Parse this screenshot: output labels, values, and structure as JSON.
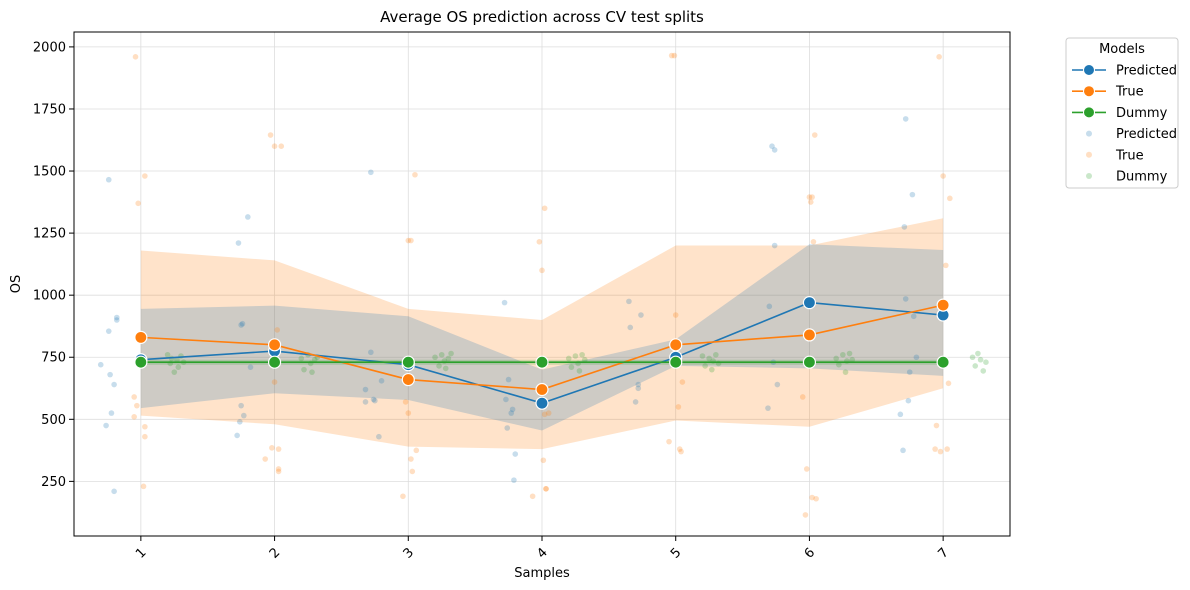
{
  "chart_data": {
    "type": "line",
    "title": "Average OS prediction across CV test splits",
    "xlabel": "Samples",
    "ylabel": "OS",
    "x": [
      "1",
      "2",
      "3",
      "4",
      "5",
      "6",
      "7"
    ],
    "ylim": [
      30,
      2060
    ],
    "yticks": [
      250,
      500,
      750,
      1000,
      1250,
      1500,
      1750,
      2000
    ],
    "grid": true,
    "legend": {
      "title": "Models",
      "placement": "outside-top-right",
      "entries": [
        {
          "label": "Predicted",
          "kind": "line"
        },
        {
          "label": "True",
          "kind": "line"
        },
        {
          "label": "Dummy",
          "kind": "line"
        },
        {
          "label": "Predicted",
          "kind": "points"
        },
        {
          "label": "True",
          "kind": "points"
        },
        {
          "label": "Dummy",
          "kind": "points"
        }
      ]
    },
    "series": [
      {
        "name": "Predicted",
        "color": "#1f77b4",
        "values": [
          740,
          775,
          720,
          565,
          750,
          970,
          920
        ],
        "band_lower": [
          545,
          605,
          578,
          455,
          715,
          705,
          675
        ],
        "band_upper": [
          945,
          958,
          915,
          700,
          822,
          1205,
          1182
        ],
        "points": [
          {
            "x": 0.7,
            "y": 720
          },
          {
            "x": 0.74,
            "y": 475
          },
          {
            "x": 0.76,
            "y": 1465
          },
          {
            "x": 0.76,
            "y": 855
          },
          {
            "x": 0.77,
            "y": 680
          },
          {
            "x": 0.78,
            "y": 525
          },
          {
            "x": 0.8,
            "y": 640
          },
          {
            "x": 0.8,
            "y": 210
          },
          {
            "x": 0.82,
            "y": 910
          },
          {
            "x": 0.82,
            "y": 900
          },
          {
            "x": 1.72,
            "y": 435
          },
          {
            "x": 1.73,
            "y": 1210
          },
          {
            "x": 1.74,
            "y": 490
          },
          {
            "x": 1.75,
            "y": 555
          },
          {
            "x": 1.75,
            "y": 880
          },
          {
            "x": 1.76,
            "y": 885
          },
          {
            "x": 1.77,
            "y": 515
          },
          {
            "x": 1.8,
            "y": 1315
          },
          {
            "x": 1.82,
            "y": 710
          },
          {
            "x": 2.68,
            "y": 620
          },
          {
            "x": 2.68,
            "y": 570
          },
          {
            "x": 2.72,
            "y": 1495
          },
          {
            "x": 2.72,
            "y": 770
          },
          {
            "x": 2.74,
            "y": 580
          },
          {
            "x": 2.75,
            "y": 575
          },
          {
            "x": 2.78,
            "y": 430
          },
          {
            "x": 2.8,
            "y": 655
          },
          {
            "x": 3.72,
            "y": 970
          },
          {
            "x": 3.73,
            "y": 580
          },
          {
            "x": 3.74,
            "y": 465
          },
          {
            "x": 3.75,
            "y": 660
          },
          {
            "x": 3.77,
            "y": 525
          },
          {
            "x": 3.78,
            "y": 540
          },
          {
            "x": 3.79,
            "y": 255
          },
          {
            "x": 3.8,
            "y": 360
          },
          {
            "x": 4.65,
            "y": 975
          },
          {
            "x": 4.66,
            "y": 870
          },
          {
            "x": 4.7,
            "y": 570
          },
          {
            "x": 4.72,
            "y": 640
          },
          {
            "x": 4.72,
            "y": 625
          },
          {
            "x": 4.74,
            "y": 920
          },
          {
            "x": 5.69,
            "y": 545
          },
          {
            "x": 5.7,
            "y": 955
          },
          {
            "x": 5.72,
            "y": 1600
          },
          {
            "x": 5.74,
            "y": 1585
          },
          {
            "x": 5.74,
            "y": 1200
          },
          {
            "x": 5.76,
            "y": 640
          },
          {
            "x": 5.73,
            "y": 730
          },
          {
            "x": 6.68,
            "y": 520
          },
          {
            "x": 6.7,
            "y": 375
          },
          {
            "x": 6.71,
            "y": 1275
          },
          {
            "x": 6.72,
            "y": 1710
          },
          {
            "x": 6.72,
            "y": 985
          },
          {
            "x": 6.74,
            "y": 575
          },
          {
            "x": 6.75,
            "y": 690
          },
          {
            "x": 6.77,
            "y": 1405
          },
          {
            "x": 6.78,
            "y": 915
          },
          {
            "x": 6.8,
            "y": 750
          }
        ]
      },
      {
        "name": "True",
        "color": "#ff7f0e",
        "values": [
          830,
          800,
          660,
          620,
          800,
          840,
          960
        ],
        "band_lower": [
          515,
          480,
          390,
          380,
          495,
          470,
          625
        ],
        "band_upper": [
          1180,
          1140,
          945,
          900,
          1200,
          1200,
          1310
        ],
        "points": [
          {
            "x": 0.95,
            "y": 590
          },
          {
            "x": 0.95,
            "y": 510
          },
          {
            "x": 0.96,
            "y": 1960
          },
          {
            "x": 0.97,
            "y": 555
          },
          {
            "x": 0.98,
            "y": 1370
          },
          {
            "x": 1.02,
            "y": 230
          },
          {
            "x": 1.03,
            "y": 1480
          },
          {
            "x": 1.03,
            "y": 470
          },
          {
            "x": 1.03,
            "y": 430
          },
          {
            "x": 1.93,
            "y": 340
          },
          {
            "x": 1.97,
            "y": 1645
          },
          {
            "x": 1.98,
            "y": 385
          },
          {
            "x": 2.0,
            "y": 650
          },
          {
            "x": 2.0,
            "y": 1600
          },
          {
            "x": 2.02,
            "y": 860
          },
          {
            "x": 2.03,
            "y": 380
          },
          {
            "x": 2.03,
            "y": 300
          },
          {
            "x": 2.03,
            "y": 290
          },
          {
            "x": 2.05,
            "y": 1600
          },
          {
            "x": 2.96,
            "y": 190
          },
          {
            "x": 2.98,
            "y": 570
          },
          {
            "x": 3.0,
            "y": 1220
          },
          {
            "x": 3.02,
            "y": 1220
          },
          {
            "x": 3.0,
            "y": 525
          },
          {
            "x": 3.02,
            "y": 340
          },
          {
            "x": 3.03,
            "y": 290
          },
          {
            "x": 3.05,
            "y": 1485
          },
          {
            "x": 3.06,
            "y": 375
          },
          {
            "x": 3.93,
            "y": 190
          },
          {
            "x": 3.98,
            "y": 1215
          },
          {
            "x": 4.0,
            "y": 1100
          },
          {
            "x": 4.01,
            "y": 335
          },
          {
            "x": 4.02,
            "y": 1350
          },
          {
            "x": 4.02,
            "y": 520
          },
          {
            "x": 4.03,
            "y": 220
          },
          {
            "x": 4.05,
            "y": 525
          },
          {
            "x": 4.03,
            "y": 220
          },
          {
            "x": 4.95,
            "y": 410
          },
          {
            "x": 4.97,
            "y": 1965
          },
          {
            "x": 4.99,
            "y": 1965
          },
          {
            "x": 5.0,
            "y": 920
          },
          {
            "x": 5.02,
            "y": 550
          },
          {
            "x": 5.03,
            "y": 380
          },
          {
            "x": 5.04,
            "y": 370
          },
          {
            "x": 5.05,
            "y": 650
          },
          {
            "x": 5.95,
            "y": 590
          },
          {
            "x": 5.97,
            "y": 115
          },
          {
            "x": 5.98,
            "y": 300
          },
          {
            "x": 6.0,
            "y": 1395
          },
          {
            "x": 6.01,
            "y": 1375
          },
          {
            "x": 6.02,
            "y": 1395
          },
          {
            "x": 6.02,
            "y": 185
          },
          {
            "x": 6.03,
            "y": 1215
          },
          {
            "x": 6.04,
            "y": 1645
          },
          {
            "x": 6.05,
            "y": 180
          },
          {
            "x": 6.94,
            "y": 380
          },
          {
            "x": 6.95,
            "y": 475
          },
          {
            "x": 6.97,
            "y": 1960
          },
          {
            "x": 6.98,
            "y": 370
          },
          {
            "x": 7.0,
            "y": 1480
          },
          {
            "x": 7.02,
            "y": 1120
          },
          {
            "x": 7.03,
            "y": 380
          },
          {
            "x": 7.04,
            "y": 645
          },
          {
            "x": 7.05,
            "y": 1390
          }
        ]
      },
      {
        "name": "Dummy",
        "color": "#2ca02c",
        "values": [
          730,
          730,
          730,
          730,
          730,
          730,
          730
        ],
        "band_lower": [
          720,
          720,
          720,
          720,
          720,
          720,
          720
        ],
        "band_upper": [
          740,
          740,
          740,
          740,
          740,
          740,
          740
        ],
        "points": [
          {
            "x": 1.2,
            "y": 760
          },
          {
            "x": 1.22,
            "y": 725
          },
          {
            "x": 1.23,
            "y": 745
          },
          {
            "x": 1.25,
            "y": 690
          },
          {
            "x": 1.27,
            "y": 740
          },
          {
            "x": 1.28,
            "y": 710
          },
          {
            "x": 1.3,
            "y": 755
          },
          {
            "x": 1.32,
            "y": 730
          },
          {
            "x": 2.2,
            "y": 745
          },
          {
            "x": 2.22,
            "y": 700
          },
          {
            "x": 2.25,
            "y": 760
          },
          {
            "x": 2.27,
            "y": 725
          },
          {
            "x": 2.28,
            "y": 690
          },
          {
            "x": 2.3,
            "y": 740
          },
          {
            "x": 2.32,
            "y": 750
          },
          {
            "x": 3.2,
            "y": 750
          },
          {
            "x": 3.23,
            "y": 715
          },
          {
            "x": 3.25,
            "y": 760
          },
          {
            "x": 3.27,
            "y": 735
          },
          {
            "x": 3.28,
            "y": 705
          },
          {
            "x": 3.3,
            "y": 745
          },
          {
            "x": 3.32,
            "y": 765
          },
          {
            "x": 4.2,
            "y": 745
          },
          {
            "x": 4.22,
            "y": 710
          },
          {
            "x": 4.25,
            "y": 755
          },
          {
            "x": 4.27,
            "y": 725
          },
          {
            "x": 4.28,
            "y": 695
          },
          {
            "x": 4.3,
            "y": 760
          },
          {
            "x": 4.32,
            "y": 740
          },
          {
            "x": 5.2,
            "y": 755
          },
          {
            "x": 5.22,
            "y": 715
          },
          {
            "x": 5.25,
            "y": 745
          },
          {
            "x": 5.27,
            "y": 700
          },
          {
            "x": 5.28,
            "y": 735
          },
          {
            "x": 5.3,
            "y": 760
          },
          {
            "x": 5.32,
            "y": 725
          },
          {
            "x": 6.2,
            "y": 745
          },
          {
            "x": 6.22,
            "y": 720
          },
          {
            "x": 6.25,
            "y": 760
          },
          {
            "x": 6.27,
            "y": 690
          },
          {
            "x": 6.28,
            "y": 735
          },
          {
            "x": 6.3,
            "y": 765
          },
          {
            "x": 6.32,
            "y": 740
          },
          {
            "x": 7.22,
            "y": 750
          },
          {
            "x": 7.24,
            "y": 715
          },
          {
            "x": 7.26,
            "y": 765
          },
          {
            "x": 7.28,
            "y": 740
          },
          {
            "x": 7.3,
            "y": 695
          },
          {
            "x": 7.32,
            "y": 730
          }
        ]
      }
    ]
  }
}
